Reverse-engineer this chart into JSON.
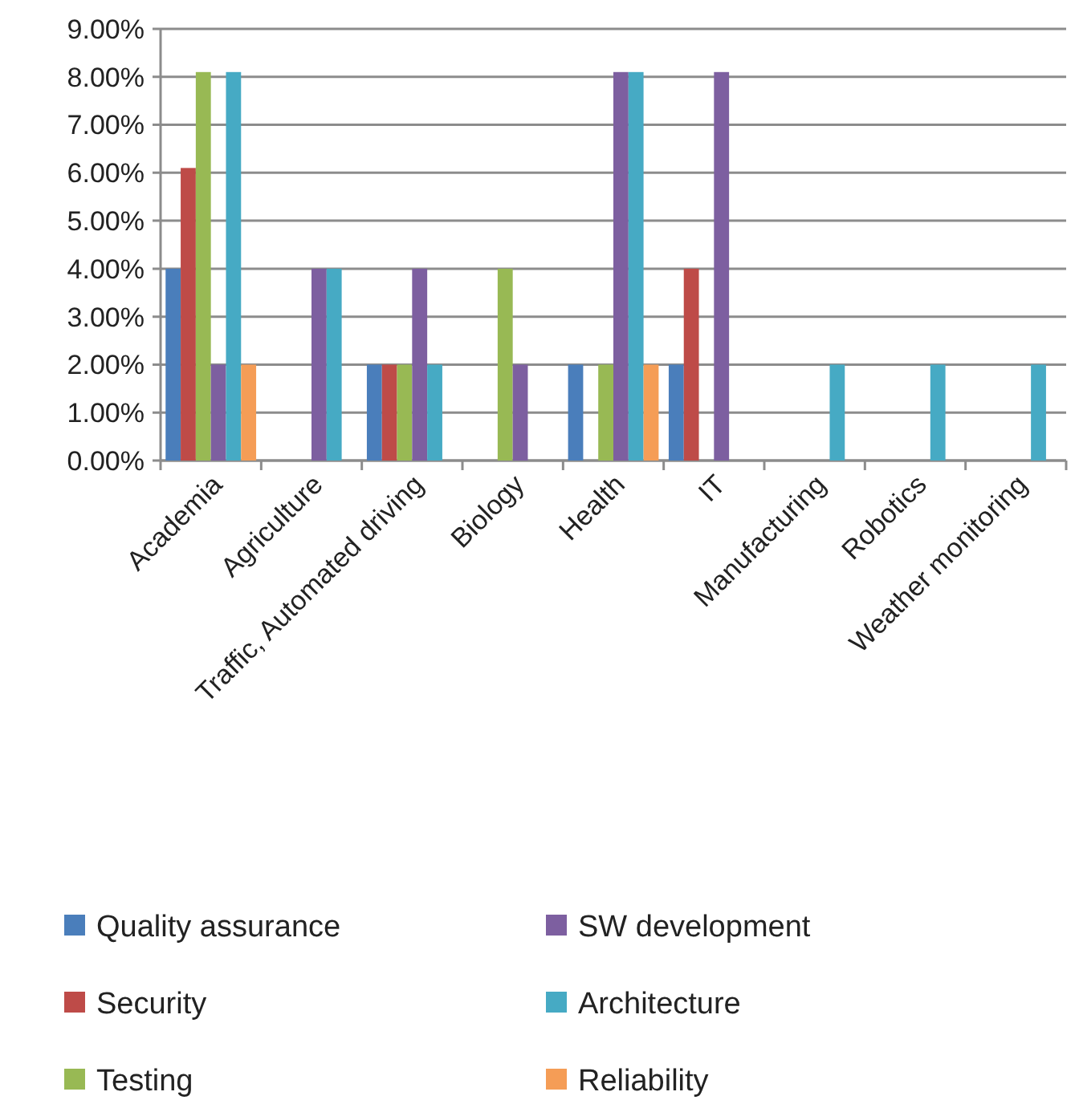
{
  "chart_data": {
    "type": "bar",
    "categories": [
      "Academia",
      "Agriculture",
      "Traffic, Automated driving",
      "Biology",
      "Health",
      "IT",
      "Manufacturing",
      "Robotics",
      "Weather monitoring"
    ],
    "series": [
      {
        "name": "Quality assurance",
        "color": "#4a7ebb",
        "values": [
          4,
          null,
          2,
          null,
          2,
          2,
          null,
          null,
          null
        ]
      },
      {
        "name": "Security",
        "color": "#be4b48",
        "values": [
          6.1,
          null,
          2,
          null,
          null,
          4,
          null,
          null,
          null
        ]
      },
      {
        "name": "Testing",
        "color": "#98b954",
        "values": [
          8.1,
          null,
          2,
          4,
          2,
          null,
          null,
          null,
          null
        ]
      },
      {
        "name": "SW development",
        "color": "#7d5fa0",
        "values": [
          2,
          4,
          4,
          2,
          8.1,
          8.1,
          null,
          null,
          null
        ]
      },
      {
        "name": "Architecture",
        "color": "#46aac4",
        "values": [
          8.1,
          4,
          2,
          null,
          8.1,
          null,
          2,
          2,
          2
        ]
      },
      {
        "name": "Reliability",
        "color": "#f59d56",
        "values": [
          2,
          null,
          null,
          null,
          2,
          null,
          null,
          null,
          null
        ]
      }
    ],
    "ylim": [
      0,
      9
    ],
    "yticks": [
      {
        "value": 0,
        "label": "0.00%"
      },
      {
        "value": 1,
        "label": "1.00%"
      },
      {
        "value": 2,
        "label": "2.00%"
      },
      {
        "value": 3,
        "label": "3.00%"
      },
      {
        "value": 4,
        "label": "4.00%"
      },
      {
        "value": 5,
        "label": "5.00%"
      },
      {
        "value": 6,
        "label": "6.00%"
      },
      {
        "value": 7,
        "label": "7.00%"
      },
      {
        "value": 8,
        "label": "8.00%"
      },
      {
        "value": 9,
        "label": "9.00%"
      }
    ],
    "grid": "y",
    "legend": "bottom"
  }
}
